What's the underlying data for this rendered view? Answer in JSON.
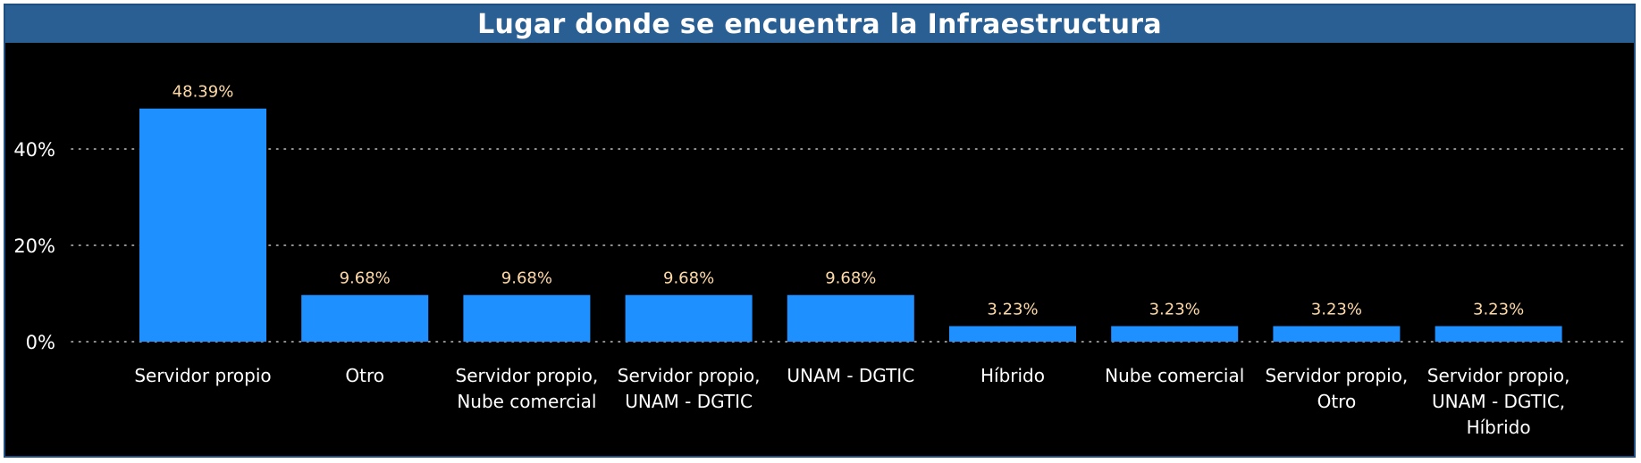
{
  "chart_data": {
    "type": "bar",
    "title": "Lugar donde se encuentra la Infraestructura",
    "categories": [
      "Servidor propio",
      "Otro",
      "Servidor propio, Nube comercial",
      "Servidor propio, UNAM - DGTIC",
      "UNAM - DGTIC",
      "Híbrido",
      "Nube comercial",
      "Servidor propio, Otro",
      "Servidor propio, UNAM - DGTIC, Híbrido"
    ],
    "category_lines": [
      [
        "Servidor propio"
      ],
      [
        "Otro"
      ],
      [
        "Servidor propio,",
        "Nube comercial"
      ],
      [
        "Servidor propio,",
        "UNAM - DGTIC"
      ],
      [
        "UNAM - DGTIC"
      ],
      [
        "Híbrido"
      ],
      [
        "Nube comercial"
      ],
      [
        "Servidor propio,",
        "Otro"
      ],
      [
        "Servidor propio,",
        "UNAM - DGTIC,",
        "Híbrido"
      ]
    ],
    "values": [
      48.39,
      9.68,
      9.68,
      9.68,
      9.68,
      3.23,
      3.23,
      3.23,
      3.23
    ],
    "data_labels": [
      "48.39%",
      "9.68%",
      "9.68%",
      "9.68%",
      "9.68%",
      "3.23%",
      "3.23%",
      "3.23%",
      "3.23%"
    ],
    "y_ticks": [
      0,
      20,
      40
    ],
    "y_tick_labels": [
      "0%",
      "20%",
      "40%"
    ],
    "ylim": [
      0,
      52
    ],
    "xlabel": "",
    "ylabel": "",
    "grid": "horizontal dotted",
    "colors": {
      "bar": "#1e90ff",
      "background": "#000000",
      "title_bar": "#2a5f93",
      "frame": "#1e4f80",
      "text": "#ffffff",
      "data_label": "#ffd9a6",
      "grid": "#bfbfbf"
    }
  }
}
